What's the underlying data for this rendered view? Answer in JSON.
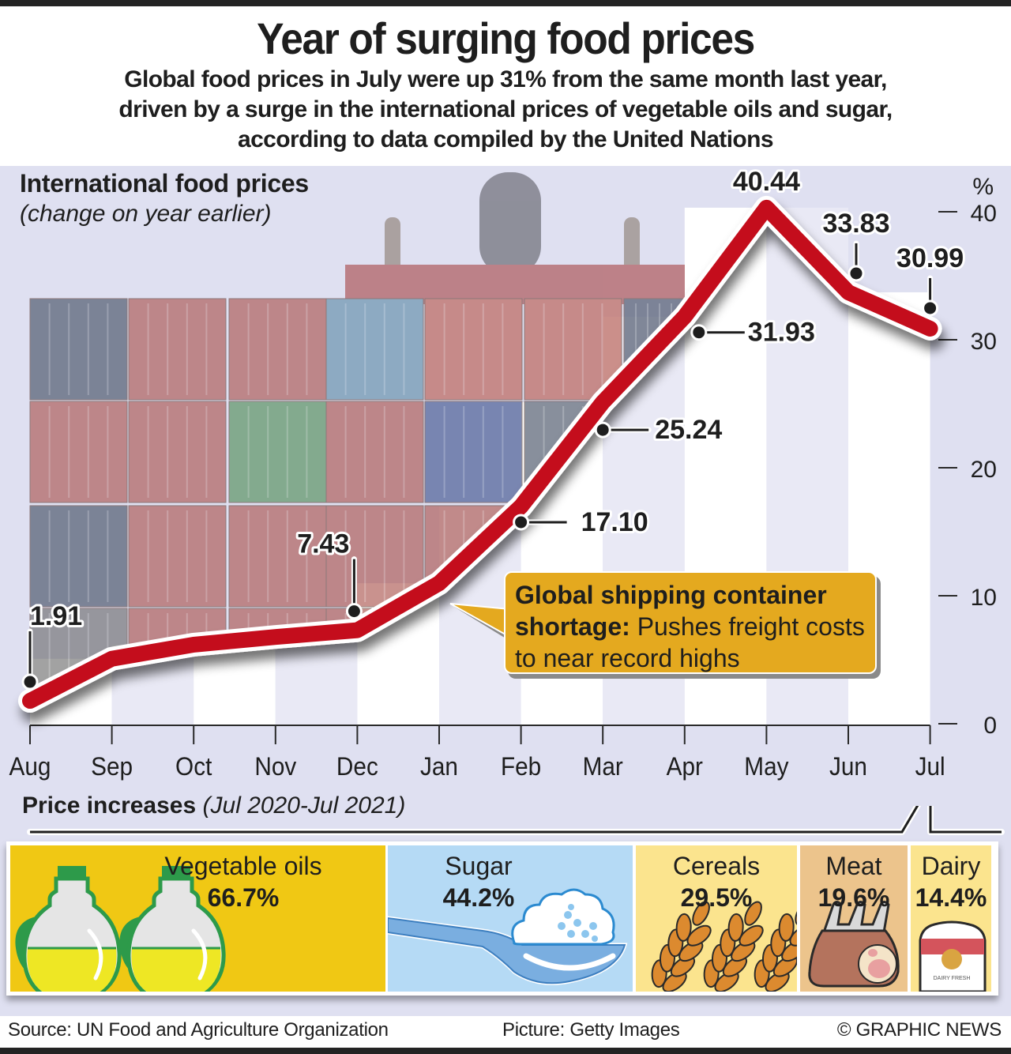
{
  "header": {
    "title": "Year of surging food prices",
    "subtitle_lines": [
      "Global food prices in July were up 31% from the same month last year,",
      "driven by a surge in the international prices of vegetable oils and sugar,",
      "according to data compiled by the United Nations"
    ]
  },
  "chart": {
    "heading": "International food prices",
    "subheading": "(change on year earlier)",
    "unit_label": "%",
    "callout": {
      "bold": "Global shipping container shortage:",
      "text": " Pushes freight costs to near record highs"
    }
  },
  "chart_data": {
    "type": "line",
    "title": "International food prices",
    "subtitle": "(change on year earlier)",
    "xlabel": "",
    "ylabel": "%",
    "categories": [
      "Aug",
      "Sep",
      "Oct",
      "Nov",
      "Dec",
      "Jan",
      "Feb",
      "Mar",
      "Apr",
      "May",
      "Jun",
      "Jul"
    ],
    "series": [
      {
        "name": "Food price change on year earlier (%)",
        "values": [
          1.91,
          5.2,
          6.3,
          6.9,
          7.43,
          11.1,
          17.1,
          25.24,
          31.93,
          40.44,
          33.83,
          30.99
        ],
        "color": "#c40d1b"
      }
    ],
    "data_labels": [
      {
        "category": "Aug",
        "text": "1.91"
      },
      {
        "category": "Dec",
        "text": "7.43"
      },
      {
        "category": "Feb",
        "text": "17.10"
      },
      {
        "category": "Mar",
        "text": "25.24"
      },
      {
        "category": "Apr",
        "text": "31.93"
      },
      {
        "category": "May",
        "text": "40.44"
      },
      {
        "category": "Jun",
        "text": "33.83"
      },
      {
        "category": "Jul",
        "text": "30.99"
      }
    ],
    "yticks": [
      0,
      10,
      20,
      30,
      40
    ],
    "ylim": [
      0,
      42
    ],
    "y_axis_side": "right",
    "grid": false,
    "annotation": "Global shipping container shortage: Pushes freight costs to near record highs",
    "background_image": "container ship stack (photo)"
  },
  "price_increases": {
    "heading": "Price increases",
    "period": "(Jul 2020-Jul 2021)",
    "items": [
      {
        "label": "Vegetable oils",
        "value": "66.7%",
        "icon": "oil-jug-icon",
        "color": "#f0c814"
      },
      {
        "label": "Sugar",
        "value": "44.2%",
        "icon": "sugar-spoon-icon",
        "color": "#b5daf5"
      },
      {
        "label": "Cereals",
        "value": "29.5%",
        "icon": "wheat-icon",
        "color": "#fbe48e"
      },
      {
        "label": "Meat",
        "value": "19.6%",
        "icon": "meat-rack-icon",
        "color": "#ecc48c"
      },
      {
        "label": "Dairy",
        "value": "14.4%",
        "icon": "milk-can-icon",
        "color": "#fbe48e",
        "can_text": "DAIRY FRESH"
      }
    ]
  },
  "footer": {
    "source": "Source: UN Food and Agriculture Organization",
    "picture": "Picture: Getty Images",
    "credit": "© GRAPHIC NEWS"
  }
}
